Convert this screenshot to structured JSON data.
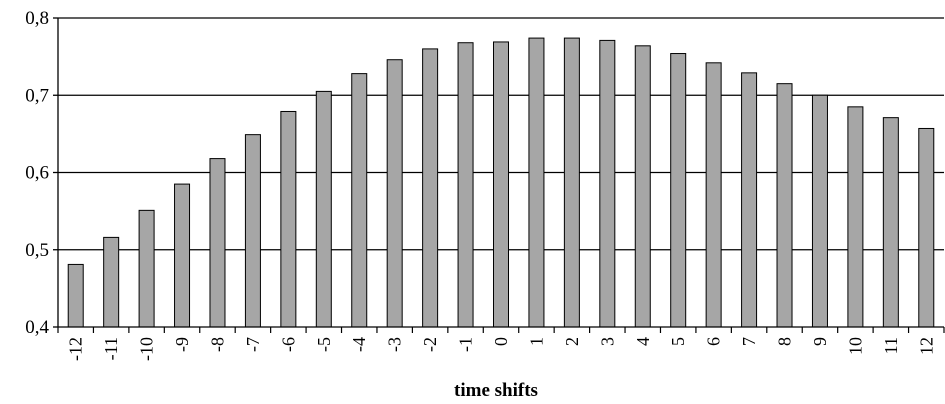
{
  "chart_data": {
    "type": "bar",
    "categories": [
      "-12",
      "-11",
      "-10",
      "-9",
      "-8",
      "-7",
      "-6",
      "-5",
      "-4",
      "-3",
      "-2",
      "-1",
      "0",
      "1",
      "2",
      "3",
      "4",
      "5",
      "6",
      "7",
      "8",
      "9",
      "10",
      "11",
      "12"
    ],
    "values": [
      0.481,
      0.516,
      0.551,
      0.585,
      0.618,
      0.649,
      0.679,
      0.705,
      0.728,
      0.746,
      0.76,
      0.768,
      0.769,
      0.774,
      0.774,
      0.771,
      0.764,
      0.754,
      0.742,
      0.729,
      0.715,
      0.7,
      0.685,
      0.671,
      0.657
    ],
    "ylim": [
      0.4,
      0.8
    ],
    "yticks": [
      0.4,
      0.5,
      0.6,
      0.7,
      0.8
    ],
    "ytick_labels": [
      "0,4",
      "0,5",
      "0,6",
      "0,7",
      "0,8"
    ],
    "xlabel": "time shifts",
    "ylabel": "",
    "grid": "horizontal",
    "bar_color": "#a6a6a6"
  }
}
